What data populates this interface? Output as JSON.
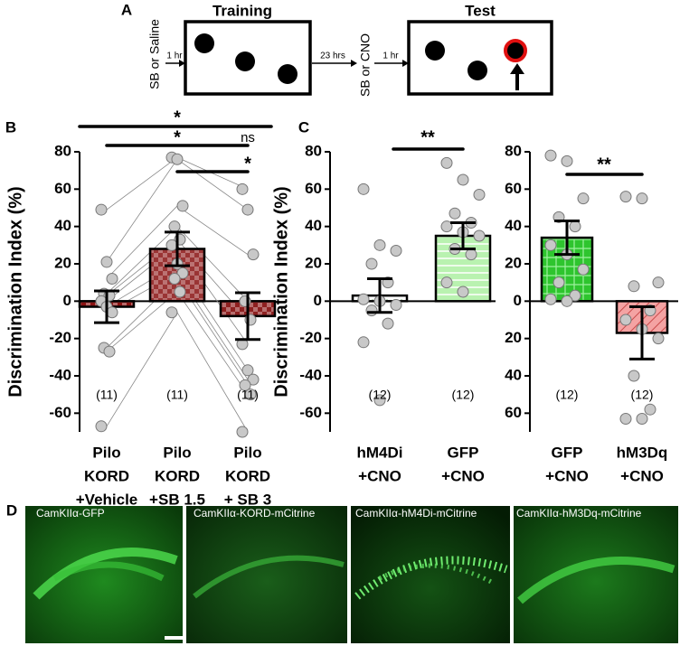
{
  "panel_a": {
    "label": "A",
    "training": "Training",
    "test": "Test",
    "pre_treatment": "SB or Saline",
    "delay_1": "1 hr",
    "delay_2": "23 hrs",
    "test_treatment": "SB or CNO",
    "delay_3": "1 hr"
  },
  "chart_data": [
    {
      "type": "bar",
      "panel": "B",
      "ylabel": "Discrimination Index (%)",
      "categories": [
        [
          "Pilo",
          "KORD",
          "+Vehicle"
        ],
        [
          "Pilo",
          "KORD",
          "+SB 1.5"
        ],
        [
          "Pilo",
          "KORD",
          "+ SB 3"
        ]
      ],
      "values": [
        -3,
        28,
        -8
      ],
      "errors": [
        8.5,
        9,
        12.5
      ],
      "colors": [
        "#8b1212",
        "#9a3434",
        "#8e2020"
      ],
      "points": [
        [
          49,
          21,
          12,
          4,
          3,
          0,
          -3,
          -6,
          -25,
          -27,
          -67
        ],
        [
          77,
          76,
          51,
          40,
          33,
          30,
          20,
          15,
          12,
          5,
          -6
        ],
        [
          60,
          49,
          25,
          0,
          -10,
          -23,
          -37,
          -42,
          -45,
          -50,
          -70
        ]
      ],
      "paired": true,
      "n_labels": [
        "(11)",
        "(11)",
        "(11)"
      ],
      "annotations": [
        "*",
        "*",
        "ns",
        "*"
      ],
      "ylim": [
        -70,
        80
      ],
      "yticks": [
        -60,
        -40,
        -20,
        0,
        20,
        40,
        60,
        80
      ]
    },
    {
      "type": "bar",
      "panel": "C",
      "ylabel": "Discrimination Index (%)",
      "categories": [
        [
          "hM4Di",
          "+CNO"
        ],
        [
          "GFP",
          "+CNO"
        ]
      ],
      "values": [
        3,
        35
      ],
      "errors": [
        9,
        7
      ],
      "colors": [
        "#ffffff",
        "#b9f2b0"
      ],
      "points": [
        [
          60,
          30,
          27,
          20,
          10,
          1,
          0,
          -2,
          -5,
          -12,
          -22,
          -53
        ],
        [
          74,
          65,
          57,
          47,
          42,
          40,
          37,
          35,
          28,
          25,
          10,
          5
        ]
      ],
      "paired": false,
      "n_labels": [
        "(12)",
        "(12)"
      ],
      "annotations": [
        "**"
      ],
      "ylim": [
        -70,
        80
      ],
      "yticks": [
        -60,
        -40,
        -20,
        0,
        20,
        40,
        60,
        80
      ]
    },
    {
      "type": "bar",
      "categories": [
        [
          "GFP",
          "+CNO"
        ],
        [
          "hM3Dq",
          "+CNO"
        ]
      ],
      "values": [
        34,
        -17
      ],
      "errors": [
        9,
        14
      ],
      "colors": [
        "#2ec52e",
        "#f4a3a3"
      ],
      "points": [
        [
          78,
          75,
          55,
          45,
          40,
          30,
          25,
          17,
          10,
          3,
          1,
          0
        ],
        [
          56,
          55,
          10,
          8,
          -5,
          -10,
          -15,
          -20,
          -40,
          -58,
          -63,
          -63
        ]
      ],
      "paired": false,
      "n_labels": [
        "(12)",
        "(12)"
      ],
      "annotations": [
        "**"
      ],
      "ylim": [
        -70,
        80
      ],
      "yticks": [
        {
          "value": -60,
          "label": "60"
        },
        {
          "value": -40,
          "label": "40"
        },
        {
          "value": -20,
          "label": "20"
        },
        0,
        20,
        40,
        60,
        80
      ]
    }
  ],
  "panel_d": {
    "label": "D",
    "images": [
      "CamKIIα-GFP",
      "CamKIIα-KORD-mCitrine",
      "CamKIIα-hM4Di-mCitrine",
      "CamKIIα-hM3Dq-mCitrine"
    ]
  }
}
